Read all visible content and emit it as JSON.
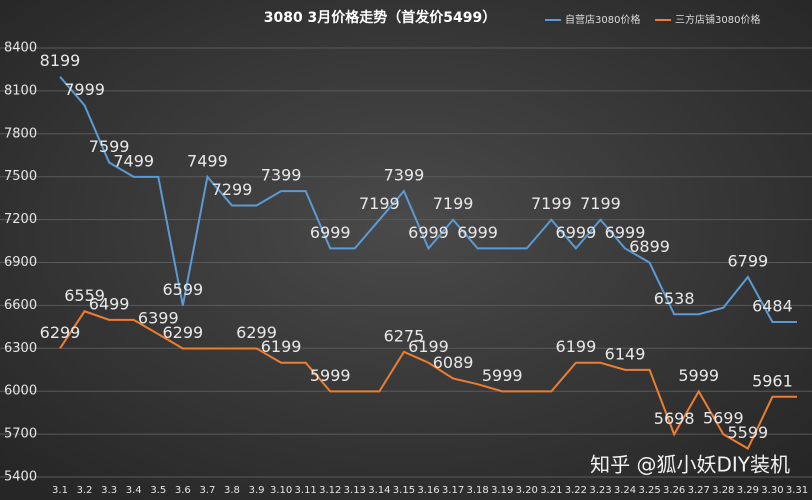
{
  "chart_data": {
    "type": "line",
    "title": "3080 3月价格走势（首发价5499）",
    "categories": [
      "3.1",
      "3.2",
      "3.3",
      "3.4",
      "3.5",
      "3.6",
      "3.7",
      "3.8",
      "3.9",
      "3.10",
      "3.11",
      "3.12",
      "3.13",
      "3.14",
      "3.15",
      "3.16",
      "3.17",
      "3.18",
      "3.19",
      "3.20",
      "3.21",
      "3.22",
      "3.23",
      "3.24",
      "3.25",
      "3.26",
      "3.27",
      "3.28",
      "3.29",
      "3.30",
      "3.31"
    ],
    "series": [
      {
        "name": "自营店3080价格",
        "color": "#5b9bd5",
        "values": [
          8199,
          7999,
          7599,
          7499,
          7499,
          6599,
          7499,
          7299,
          7299,
          7399,
          7399,
          6999,
          6999,
          7199,
          7399,
          6999,
          7199,
          6999,
          6999,
          6999,
          7199,
          6999,
          7199,
          6999,
          6899,
          6538,
          6538,
          6584,
          6799,
          6484,
          6484
        ],
        "value_labels": [
          "8199",
          "7999",
          "7599",
          "7499",
          null,
          "6599",
          "7499",
          "7299",
          null,
          "7399",
          null,
          "6999",
          null,
          "7199",
          "7399",
          "6999",
          "7199",
          "6999",
          null,
          null,
          "7199",
          "6999",
          "7199",
          "6999",
          "6899",
          "6538",
          null,
          null,
          "6799",
          "6484",
          null
        ]
      },
      {
        "name": "三方店铺3080价格",
        "color": "#ed7d31",
        "values": [
          6299,
          6559,
          6499,
          6499,
          6399,
          6299,
          6299,
          6299,
          6299,
          6199,
          6199,
          5999,
          5999,
          5999,
          6275,
          6199,
          6089,
          6049,
          5999,
          5999,
          5999,
          6199,
          6199,
          6149,
          6149,
          5698,
          5999,
          5699,
          5599,
          5961,
          5961
        ],
        "value_labels": [
          "6299",
          "6559",
          "6499",
          null,
          "6399",
          "6299",
          null,
          null,
          "6299",
          "6199",
          null,
          "5999",
          null,
          null,
          "6275",
          "6199",
          "6089",
          null,
          "5999",
          null,
          null,
          "6199",
          null,
          "6149",
          null,
          "5698",
          "5999",
          "5699",
          "5599",
          "5961",
          null
        ]
      }
    ],
    "ylim": [
      5400,
      8400
    ],
    "yticks": [
      5400,
      5700,
      6000,
      6300,
      6600,
      6900,
      7200,
      7500,
      7800,
      8100,
      8400
    ],
    "grid": true,
    "legend": "top-right",
    "watermark": "知乎 @狐小妖DIY装机"
  }
}
